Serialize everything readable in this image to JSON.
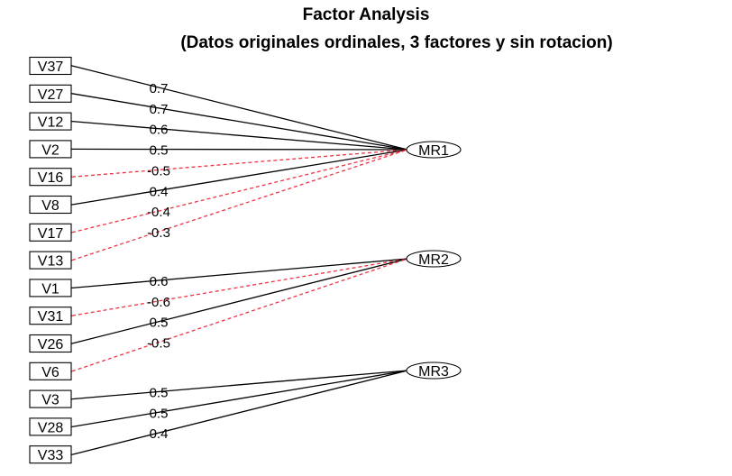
{
  "title": "Factor Analysis",
  "subtitle": "(Datos originales ordinales, 3 factores y sin rotacion)",
  "colors": {
    "positive": "#000000",
    "negative": "#ee3344"
  },
  "factors": [
    {
      "id": "f1",
      "label": "MR1"
    },
    {
      "id": "f2",
      "label": "MR2"
    },
    {
      "id": "f3",
      "label": "MR3"
    }
  ],
  "variables": [
    "V37",
    "V27",
    "V12",
    "V2",
    "V16",
    "V8",
    "V17",
    "V13",
    "V1",
    "V31",
    "V26",
    "V6",
    "V3",
    "V28",
    "V33"
  ],
  "loadings": [
    {
      "factor": 0,
      "variable": 0,
      "label": "0.7",
      "sign": "positive"
    },
    {
      "factor": 0,
      "variable": 1,
      "label": "0.7",
      "sign": "positive"
    },
    {
      "factor": 0,
      "variable": 2,
      "label": "0.6",
      "sign": "positive"
    },
    {
      "factor": 0,
      "variable": 3,
      "label": "0.5",
      "sign": "positive"
    },
    {
      "factor": 0,
      "variable": 4,
      "label": "-0.5",
      "sign": "negative"
    },
    {
      "factor": 0,
      "variable": 5,
      "label": "0.4",
      "sign": "positive"
    },
    {
      "factor": 0,
      "variable": 6,
      "label": "-0.4",
      "sign": "negative"
    },
    {
      "factor": 0,
      "variable": 7,
      "label": "-0.3",
      "sign": "negative"
    },
    {
      "factor": 1,
      "variable": 8,
      "label": "0.6",
      "sign": "positive"
    },
    {
      "factor": 1,
      "variable": 9,
      "label": "-0.6",
      "sign": "negative"
    },
    {
      "factor": 1,
      "variable": 10,
      "label": "0.5",
      "sign": "positive"
    },
    {
      "factor": 1,
      "variable": 11,
      "label": "-0.5",
      "sign": "negative"
    },
    {
      "factor": 2,
      "variable": 12,
      "label": "0.5",
      "sign": "positive"
    },
    {
      "factor": 2,
      "variable": 13,
      "label": "0.5",
      "sign": "positive"
    },
    {
      "factor": 2,
      "variable": 14,
      "label": "0.4",
      "sign": "positive"
    }
  ]
}
